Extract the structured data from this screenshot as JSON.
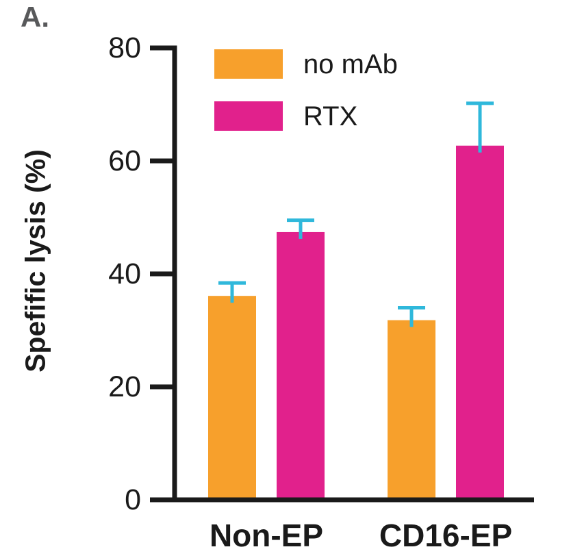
{
  "panel_label": "A.",
  "colors": {
    "background": "#FFFFFF",
    "panel_label": "#58595B",
    "axis": "#1A1A1A",
    "text": "#1A1A1A"
  },
  "chart_data": {
    "type": "bar",
    "title": "",
    "ylabel": "Spefific lysis (%)",
    "xlabel": "",
    "categories": [
      "Non-EP",
      "CD16-EP"
    ],
    "series": [
      {
        "name": "no mAb",
        "color": "#F7A02C",
        "values": [
          36.1,
          31.8
        ],
        "errors": [
          2.3,
          2.2
        ]
      },
      {
        "name": "RTX",
        "color": "#E1218C",
        "values": [
          47.4,
          62.7
        ],
        "errors": [
          2.1,
          7.5
        ]
      }
    ],
    "error_bar_color": "#2FB8DB",
    "yticks": [
      0,
      20,
      40,
      60,
      80
    ],
    "ylim": [
      0,
      80
    ],
    "grid": false,
    "legend_position": "upper-left-inside",
    "error_bars": "upper-only"
  }
}
